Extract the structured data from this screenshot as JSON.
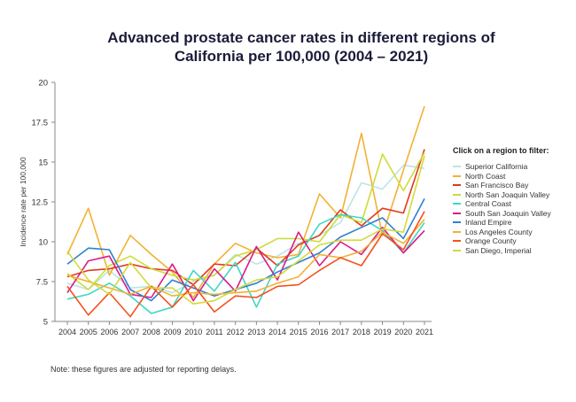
{
  "title_line1": "Advanced prostate cancer rates in different regions of",
  "title_line2": "California per 100,000 (2004 – 2021)",
  "legend_title": "Click on a region to filter:",
  "note": "Note: these figures are adjusted for reporting delays.",
  "chart_data": {
    "type": "line",
    "ylabel": "Incidence rate per 100,000",
    "xlabel": "",
    "ylim": [
      5,
      20
    ],
    "y_ticks": [
      "5",
      "7.5",
      "10",
      "12.5",
      "15",
      "17.5",
      "20"
    ],
    "x": [
      2004,
      2005,
      2006,
      2007,
      2008,
      2009,
      2010,
      2011,
      2012,
      2013,
      2014,
      2015,
      2016,
      2017,
      2018,
      2019,
      2020,
      2021
    ],
    "series": [
      {
        "name": "Superior California",
        "color": "#bde3e8",
        "values": [
          7.4,
          7.0,
          8.2,
          7.1,
          7.2,
          6.8,
          7.5,
          7.9,
          9.2,
          8.6,
          9.1,
          9.9,
          10.4,
          11.2,
          13.7,
          13.3,
          14.8,
          14.6
        ]
      },
      {
        "name": "North Coast",
        "color": "#f2b134",
        "values": [
          9.2,
          12.1,
          7.9,
          10.4,
          9.2,
          8.1,
          6.5,
          8.6,
          9.9,
          9.3,
          9.0,
          9.2,
          13.0,
          11.5,
          16.8,
          10.4,
          14.5,
          18.5
        ]
      },
      {
        "name": "San Francisco Bay",
        "color": "#e03a1e",
        "values": [
          7.8,
          8.2,
          8.3,
          8.6,
          8.3,
          8.2,
          7.3,
          8.6,
          8.5,
          9.6,
          8.5,
          9.8,
          10.4,
          12.0,
          11.0,
          12.1,
          11.8,
          15.8
        ]
      },
      {
        "name": "North San Joaquin Valley",
        "color": "#cddc39",
        "values": [
          8.0,
          7.0,
          8.5,
          9.1,
          8.3,
          7.9,
          7.6,
          7.9,
          9.1,
          9.5,
          10.2,
          10.2,
          10.0,
          11.7,
          11.2,
          15.5,
          13.2,
          15.6
        ]
      },
      {
        "name": "Central Coast",
        "color": "#3dd8c4",
        "values": [
          6.4,
          6.7,
          7.4,
          6.6,
          5.5,
          5.9,
          8.2,
          6.9,
          8.7,
          5.9,
          8.6,
          9.1,
          11.1,
          11.7,
          11.5,
          10.7,
          9.3,
          11.2
        ]
      },
      {
        "name": "South San Joaquin Valley",
        "color": "#d81b8a",
        "values": [
          6.8,
          8.8,
          9.1,
          6.7,
          6.5,
          8.6,
          6.3,
          8.3,
          6.9,
          9.7,
          7.6,
          10.6,
          8.5,
          10.0,
          9.2,
          10.9,
          9.3,
          10.7
        ]
      },
      {
        "name": "Inland Empire",
        "color": "#2f80d1",
        "values": [
          8.6,
          9.6,
          9.5,
          7.0,
          6.3,
          7.6,
          7.1,
          6.6,
          7.0,
          7.4,
          8.1,
          8.7,
          9.3,
          10.3,
          10.9,
          11.5,
          10.2,
          12.7
        ]
      },
      {
        "name": "Los Angeles County",
        "color": "#f2b134",
        "values": [
          7.9,
          7.5,
          7.1,
          6.7,
          7.2,
          6.6,
          6.8,
          6.7,
          6.8,
          6.9,
          7.4,
          7.8,
          9.2,
          9.0,
          9.4,
          10.6,
          9.9,
          11.4
        ]
      },
      {
        "name": "Orange County",
        "color": "#f4511e",
        "values": [
          7.2,
          5.4,
          6.8,
          5.3,
          7.2,
          5.9,
          7.3,
          5.6,
          6.6,
          6.5,
          7.2,
          7.3,
          8.2,
          9.0,
          8.5,
          10.5,
          9.5,
          11.9
        ]
      },
      {
        "name": "San Diego, Imperial",
        "color": "#d4d93a",
        "values": [
          9.4,
          7.6,
          6.7,
          8.7,
          7.1,
          7.1,
          6.1,
          6.3,
          7.0,
          7.6,
          7.8,
          8.8,
          9.8,
          10.1,
          10.1,
          10.8,
          10.6,
          15.4
        ]
      }
    ]
  }
}
